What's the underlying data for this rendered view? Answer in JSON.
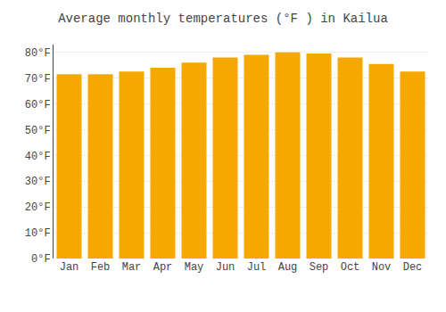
{
  "chart_data": {
    "type": "bar",
    "title": "Average monthly temperatures (°F ) in Kailua",
    "categories": [
      "Jan",
      "Feb",
      "Mar",
      "Apr",
      "May",
      "Jun",
      "Jul",
      "Aug",
      "Sep",
      "Oct",
      "Nov",
      "Dec"
    ],
    "values": [
      71.5,
      71.5,
      72.5,
      74,
      76,
      78,
      79,
      80,
      79.5,
      78,
      75.5,
      72.5
    ],
    "color": "#F5A800",
    "ylim": [
      0,
      83
    ],
    "yticks": [
      {
        "value": 0,
        "label": "0°F"
      },
      {
        "value": 10,
        "label": "10°F"
      },
      {
        "value": 20,
        "label": "20°F"
      },
      {
        "value": 30,
        "label": "30°F"
      },
      {
        "value": 40,
        "label": "40°F"
      },
      {
        "value": 50,
        "label": "50°F"
      },
      {
        "value": 60,
        "label": "60°F"
      },
      {
        "value": 70,
        "label": "70°F"
      },
      {
        "value": 80,
        "label": "80°F"
      }
    ],
    "grid": true
  }
}
